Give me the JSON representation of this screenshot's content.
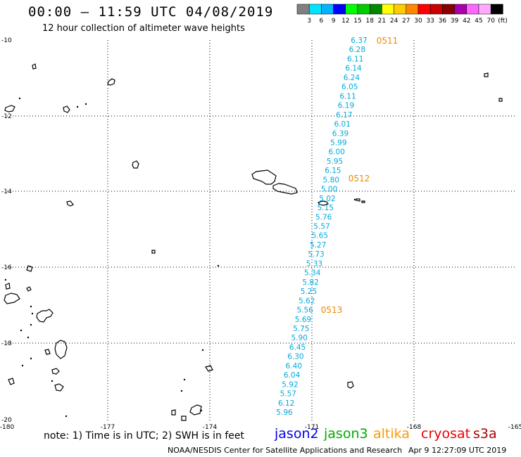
{
  "title": "00:00 – 11:59 UTC 04/08/2019",
  "subtitle": "12 hour collection of altimeter wave heights",
  "colorbar": {
    "colors": [
      "#808080",
      "#00e5ff",
      "#00b4ff",
      "#0000ff",
      "#00ff00",
      "#00cc00",
      "#008800",
      "#ffff00",
      "#ffcc00",
      "#ff8800",
      "#ff0000",
      "#cc0000",
      "#880000",
      "#aa00aa",
      "#ff66ff",
      "#ffaaff",
      "#000000"
    ],
    "labels": [
      "3",
      "6",
      "9",
      "12",
      "15",
      "18",
      "21",
      "24",
      "27",
      "30",
      "33",
      "36",
      "39",
      "42",
      "45",
      "70"
    ],
    "unit": "(ft)"
  },
  "axes": {
    "lat_labels": [
      "-10",
      "-12",
      "-14",
      "-16",
      "-18",
      "-20"
    ],
    "lon_labels": [
      "-180",
      "-177",
      "-174",
      "-171",
      "-168",
      "-165"
    ]
  },
  "swh_values": {
    "color": "#00aadd",
    "values": [
      "6.37",
      "6.28",
      "6.11",
      "6.14",
      "6.24",
      "6.05",
      "6.11",
      "6.19",
      "6.17",
      "6.01",
      "6.39",
      "5.99",
      "6.00",
      "5.95",
      "6.15",
      "5.80",
      "5.00",
      "5.02",
      "5.15",
      "5.76",
      "5.57",
      "5.65",
      "5.27",
      "5.73",
      "5.33",
      "5.34",
      "5.82",
      "5.25",
      "5.62",
      "5.56",
      "5.69",
      "5.75",
      "5.90",
      "6.45",
      "6.30",
      "6.40",
      "6.04",
      "5.92",
      "5.57",
      "6.12",
      "5.96"
    ]
  },
  "time_labels": {
    "color": "#ee8800",
    "items": [
      "0511",
      "0512",
      "0513"
    ]
  },
  "footer": {
    "note": "note:  1) Time is in UTC;  2) SWH is in feet",
    "satellites": [
      {
        "name": "jason2",
        "color": "#0000ee"
      },
      {
        "name": "jason3",
        "color": "#00aa00"
      },
      {
        "name": "altika",
        "color": "#ff9900"
      },
      {
        "name": "cryosat",
        "color": "#ee0000"
      },
      {
        "name": "s3a",
        "color": "#aa0000"
      }
    ],
    "credit": "NOAA/NESDIS Center for Satellite Applications and Research",
    "timestamp": "Apr  9 12:27:09 UTC 2019"
  }
}
